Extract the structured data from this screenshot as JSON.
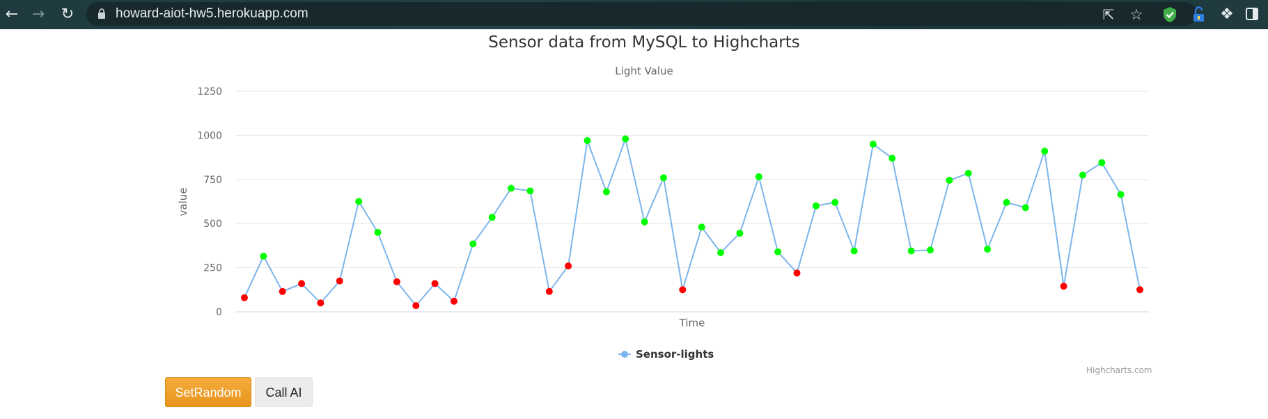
{
  "browser": {
    "url": "howard-aiot-hw5.herokuapp.com",
    "icons": [
      "back-arrow-icon",
      "forward-arrow-icon",
      "reload-icon",
      "lock-icon",
      "share-icon",
      "star-icon",
      "shield-extension-icon",
      "lock-extension-icon",
      "puzzle-extension-icon",
      "sidebar-icon"
    ]
  },
  "chart_data": {
    "type": "line",
    "title": "Sensor data from MySQL to Highcharts",
    "subtitle": "Light Value",
    "xlabel": "Time",
    "ylabel": "value",
    "ylim": [
      0,
      1250
    ],
    "yticks": [
      0,
      250,
      500,
      750,
      1000,
      1250
    ],
    "grid": true,
    "legend": "bottom-center",
    "line_color": "#7cb5ec",
    "marker_colors": {
      "low": "#ff0000",
      "high": "#00ff00"
    },
    "series": [
      {
        "name": "Sensor-lights",
        "values": [
          80,
          315,
          115,
          160,
          50,
          175,
          625,
          450,
          170,
          35,
          160,
          60,
          385,
          535,
          700,
          685,
          115,
          260,
          970,
          680,
          980,
          510,
          760,
          125,
          480,
          335,
          445,
          765,
          340,
          220,
          600,
          620,
          345,
          950,
          870,
          345,
          350,
          745,
          785,
          355,
          620,
          590,
          910,
          145,
          775,
          845,
          665,
          125
        ],
        "marker_color_names": [
          "red",
          "green",
          "red",
          "red",
          "red",
          "red",
          "green",
          "green",
          "red",
          "red",
          "red",
          "red",
          "green",
          "green",
          "green",
          "green",
          "red",
          "red",
          "green",
          "green",
          "green",
          "green",
          "green",
          "red",
          "green",
          "green",
          "green",
          "green",
          "green",
          "red",
          "green",
          "green",
          "green",
          "green",
          "green",
          "green",
          "green",
          "green",
          "green",
          "green",
          "green",
          "green",
          "green",
          "red",
          "green",
          "green",
          "green",
          "red"
        ]
      }
    ],
    "credits": "Highcharts.com"
  },
  "buttons": {
    "set_random": "SetRandom",
    "call_ai": "Call AI"
  }
}
